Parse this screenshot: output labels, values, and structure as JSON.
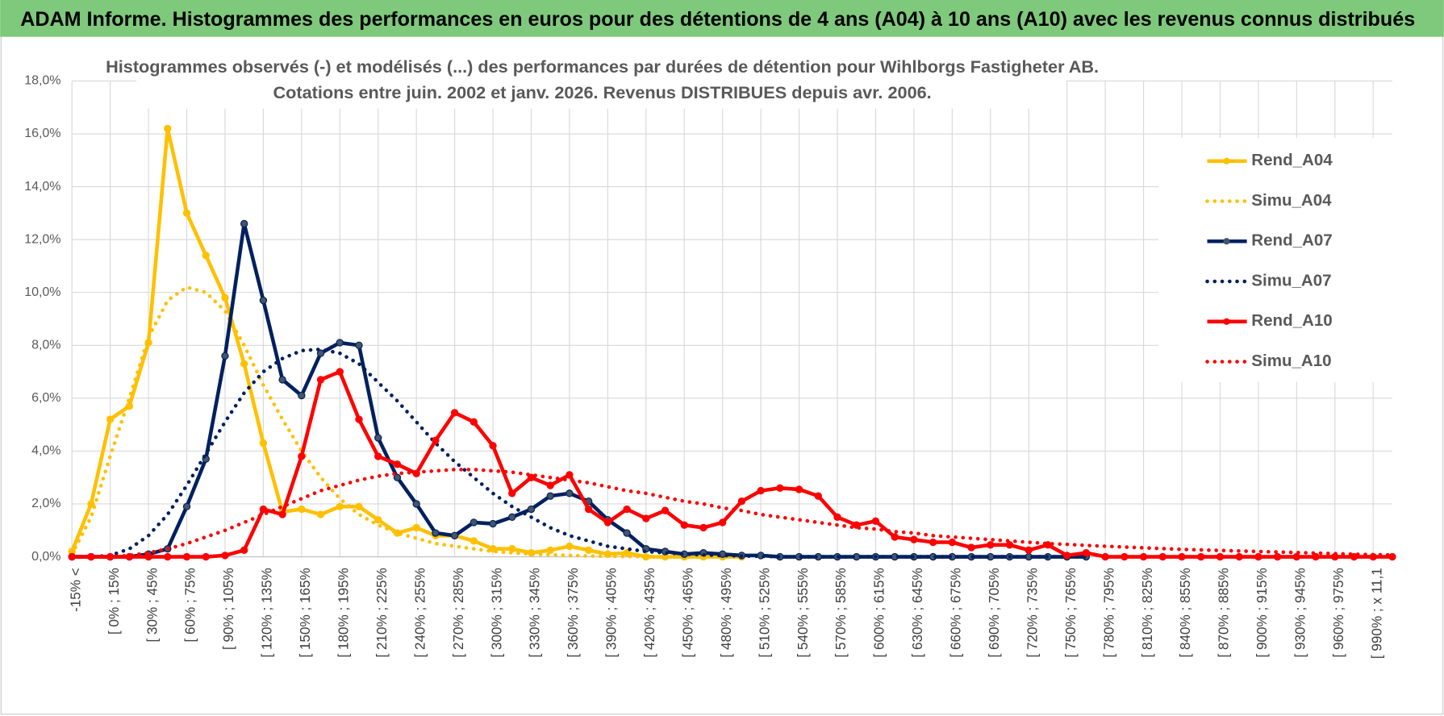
{
  "header": {
    "title": "ADAM Informe. Histogrammes des performances en euros pour des détentions de 4 ans (A04) à 10 ans (A10) avec les revenus connus distribués"
  },
  "chart_data": {
    "type": "line",
    "title": "Histogrammes observés (-) et modélisés (...) des performances par durées de détention pour Wihlborgs Fastigheter AB.",
    "subtitle": "Cotations entre juin. 2002 et janv. 2026. Revenus DISTRIBUES depuis avr. 2006.",
    "categories": [
      "-15% <",
      null,
      "[ 0% ; 15%",
      null,
      "[ 30% ; 45%",
      null,
      "[ 60% ; 75%",
      null,
      "[ 90% ; 105%",
      null,
      "[ 120% ; 135%",
      null,
      "[ 150% ; 165%",
      null,
      "[ 180% ; 195%",
      null,
      "[ 210% ; 225%",
      null,
      "[ 240% ; 255%",
      null,
      "[ 270% ; 285%",
      null,
      "[ 300% ; 315%",
      null,
      "[ 330% ; 345%",
      null,
      "[ 360% ; 375%",
      null,
      "[ 390% ; 405%",
      null,
      "[ 420% ; 435%",
      null,
      "[ 450% ; 465%",
      null,
      "[ 480% ; 495%",
      null,
      "[ 510% ; 525%",
      null,
      "[ 540% ; 555%",
      null,
      "[ 570% ; 585%",
      null,
      "[ 600% ; 615%",
      null,
      "[ 630% ; 645%",
      null,
      "[ 660% ; 675%",
      null,
      "[ 690% ; 705%",
      null,
      "[ 720% ; 735%",
      null,
      "[ 750% ; 765%",
      null,
      "[ 780% ; 795%",
      null,
      "[ 810% ; 825%",
      null,
      "[ 840% ; 855%",
      null,
      "[ 870% ; 885%",
      null,
      "[ 900% ; 915%",
      null,
      "[ 930% ; 945%",
      null,
      "[ 960% ; 975%",
      null,
      "[ 990% ; x 11,1",
      null
    ],
    "series": [
      {
        "name": "Rend_A04",
        "color": "#ffc000",
        "line_style": "solid",
        "markers": true,
        "values": [
          0.2,
          2.0,
          5.2,
          5.7,
          8.1,
          16.2,
          13.0,
          11.4,
          9.8,
          7.3,
          4.3,
          1.7,
          1.8,
          1.6,
          1.9,
          1.9,
          1.4,
          0.9,
          1.1,
          0.8,
          0.8,
          0.6,
          0.3,
          0.3,
          0.15,
          0.25,
          0.4,
          0.25,
          0.1,
          0.15,
          0,
          0,
          0,
          0,
          0,
          0,
          null,
          null,
          null,
          null,
          null,
          null,
          null,
          null,
          null,
          null,
          null,
          null,
          null,
          null,
          null,
          null,
          null,
          null,
          null,
          null,
          null,
          null,
          null,
          null,
          null,
          null,
          null,
          null,
          null,
          null,
          null,
          null,
          null,
          null
        ]
      },
      {
        "name": "Simu_A04",
        "color": "#ffc000",
        "line_style": "dotted",
        "markers": false,
        "values": [
          0.1,
          1.5,
          3.8,
          6.0,
          8.3,
          9.7,
          10.2,
          10.0,
          9.3,
          8.0,
          6.5,
          5.2,
          4.0,
          3.0,
          2.2,
          1.6,
          1.2,
          0.9,
          0.7,
          0.5,
          0.4,
          0.3,
          0.2,
          0.15,
          0.1,
          0.08,
          0.05,
          0.03,
          0.02,
          0.01,
          0,
          0,
          0,
          0,
          0,
          0,
          null,
          null,
          null,
          null,
          null,
          null,
          null,
          null,
          null,
          null,
          null,
          null,
          null,
          null,
          null,
          null,
          null,
          null,
          null,
          null,
          null,
          null,
          null,
          null,
          null,
          null,
          null,
          null,
          null,
          null,
          null,
          null,
          null,
          null
        ]
      },
      {
        "name": "Rend_A07",
        "color": "#002060",
        "line_style": "solid",
        "markers": true,
        "values": [
          0,
          0,
          0,
          0,
          0.1,
          0.3,
          1.9,
          3.7,
          7.6,
          12.6,
          9.7,
          6.7,
          6.1,
          7.7,
          8.1,
          8.0,
          4.5,
          3.0,
          2.0,
          0.9,
          0.8,
          1.3,
          1.25,
          1.5,
          1.8,
          2.3,
          2.4,
          2.1,
          1.4,
          0.9,
          0.3,
          0.2,
          0.1,
          0.15,
          0.1,
          0.05,
          0.05,
          0,
          0,
          0,
          0,
          0,
          0,
          0,
          0,
          0,
          0,
          0,
          0,
          0,
          0,
          0,
          0,
          0,
          null,
          null,
          null,
          null,
          null,
          null,
          null,
          null,
          null,
          null,
          null,
          null,
          null,
          null,
          null,
          null
        ]
      },
      {
        "name": "Simu_A07",
        "color": "#002060",
        "line_style": "dotted",
        "markers": false,
        "values": [
          0,
          0,
          0.05,
          0.3,
          0.8,
          1.6,
          2.7,
          3.9,
          5.1,
          6.2,
          7.0,
          7.5,
          7.8,
          7.85,
          7.7,
          7.3,
          6.6,
          5.9,
          5.1,
          4.3,
          3.6,
          3.0,
          2.4,
          1.9,
          1.5,
          1.1,
          0.8,
          0.6,
          0.4,
          0.3,
          0.2,
          0.15,
          0.1,
          0.07,
          0.05,
          0.03,
          0.02,
          0,
          0,
          0,
          0,
          0,
          0,
          0,
          0,
          0,
          0,
          0,
          0,
          0,
          0,
          0,
          0,
          0,
          null,
          null,
          null,
          null,
          null,
          null,
          null,
          null,
          null,
          null,
          null,
          null,
          null,
          null,
          null,
          null
        ]
      },
      {
        "name": "Rend_A10",
        "color": "#ff0000",
        "line_style": "solid",
        "markers": true,
        "values": [
          0,
          0,
          0,
          0,
          0,
          0,
          0,
          0,
          0.05,
          0.25,
          1.8,
          1.6,
          3.8,
          6.7,
          7.0,
          5.2,
          3.8,
          3.5,
          3.15,
          4.4,
          5.45,
          5.1,
          4.2,
          2.4,
          3.0,
          2.7,
          3.1,
          1.8,
          1.3,
          1.8,
          1.45,
          1.75,
          1.2,
          1.1,
          1.3,
          2.1,
          2.5,
          2.6,
          2.55,
          2.3,
          1.5,
          1.2,
          1.35,
          0.75,
          0.65,
          0.55,
          0.55,
          0.35,
          0.45,
          0.45,
          0.25,
          0.45,
          0.05,
          0.15,
          0,
          0,
          0,
          0,
          0,
          0,
          0,
          0,
          0,
          0,
          0,
          0,
          0,
          0,
          0,
          0
        ]
      },
      {
        "name": "Simu_A10",
        "color": "#ff0000",
        "line_style": "dotted",
        "markers": false,
        "values": [
          0,
          0,
          0,
          0.05,
          0.15,
          0.3,
          0.5,
          0.75,
          1.0,
          1.3,
          1.6,
          1.9,
          2.2,
          2.5,
          2.7,
          2.9,
          3.05,
          3.15,
          3.2,
          3.25,
          3.3,
          3.3,
          3.25,
          3.2,
          3.1,
          3.0,
          2.9,
          2.8,
          2.65,
          2.5,
          2.4,
          2.25,
          2.1,
          2.0,
          1.85,
          1.75,
          1.6,
          1.5,
          1.4,
          1.3,
          1.2,
          1.1,
          1.05,
          0.95,
          0.9,
          0.8,
          0.75,
          0.7,
          0.65,
          0.6,
          0.55,
          0.5,
          0.47,
          0.43,
          0.4,
          0.37,
          0.34,
          0.31,
          0.28,
          0.26,
          0.24,
          0.22,
          0.2,
          0.18,
          0.16,
          0.14,
          0.12,
          0.1,
          0.08,
          0.07
        ]
      }
    ],
    "ylim": [
      0,
      18
    ],
    "yticks": [
      {
        "value": 0,
        "label": "0,0%"
      },
      {
        "value": 2,
        "label": "2,0%"
      },
      {
        "value": 4,
        "label": "4,0%"
      },
      {
        "value": 6,
        "label": "6,0%"
      },
      {
        "value": 8,
        "label": "8,0%"
      },
      {
        "value": 10,
        "label": "10,0%"
      },
      {
        "value": 12,
        "label": "12,0%"
      },
      {
        "value": 14,
        "label": "14,0%"
      },
      {
        "value": 16,
        "label": "16,0%"
      },
      {
        "value": 18,
        "label": "18,0%"
      }
    ],
    "grid": true,
    "legend": "right"
  }
}
